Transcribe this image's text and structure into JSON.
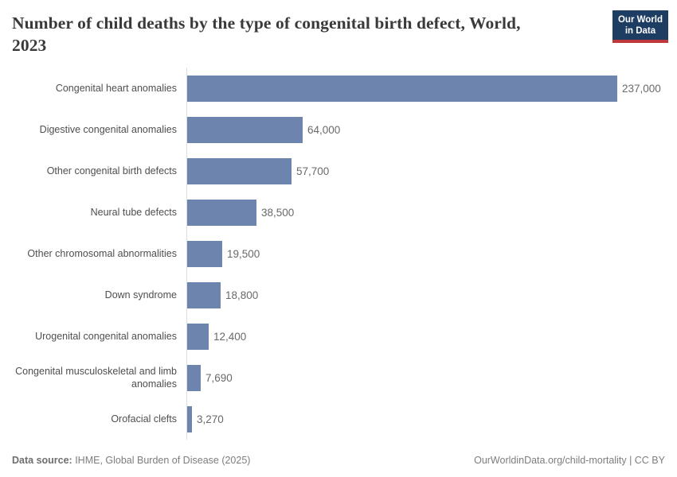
{
  "header": {
    "title_lines": [
      "Number of child deaths by the type of congenital birth defect, World,",
      "2023"
    ],
    "logo": {
      "line1": "Our World",
      "line2": "in Data"
    }
  },
  "chart_data": {
    "type": "bar",
    "orientation": "horizontal",
    "title": "Number of child deaths by the type of congenital birth defect, World, 2023",
    "categories": [
      "Congenital heart anomalies",
      "Digestive congenital anomalies",
      "Other congenital birth defects",
      "Neural tube defects",
      "Other chromosomal abnormalities",
      "Down syndrome",
      "Urogenital congenital anomalies",
      "Congenital musculoskeletal and limb anomalies",
      "Orofacial clefts"
    ],
    "values": [
      237000,
      64000,
      57700,
      38500,
      19500,
      18800,
      12400,
      7690,
      3270
    ],
    "value_labels": [
      "237,000",
      "64,000",
      "57,700",
      "38,500",
      "19,500",
      "18,800",
      "12,400",
      "7,690",
      "3,270"
    ],
    "xlabel": "",
    "ylabel": "",
    "xlim": [
      0,
      237000
    ],
    "grid": false,
    "legend": "none"
  },
  "footer": {
    "datasource_label": "Data source:",
    "datasource_value": " IHME, Global Burden of Disease (2025)",
    "credit": "OurWorldinData.org/child-mortality | CC BY"
  },
  "colors": {
    "bar": "#6d84ae",
    "logo_navy": "#1d3d63",
    "logo_red": "#c0383b",
    "title_text": "#3a3a3a",
    "label_text": "#4f4f4f",
    "value_text": "#696969",
    "axis_line": "#dedede",
    "footer_text": "#7d7d7d"
  }
}
